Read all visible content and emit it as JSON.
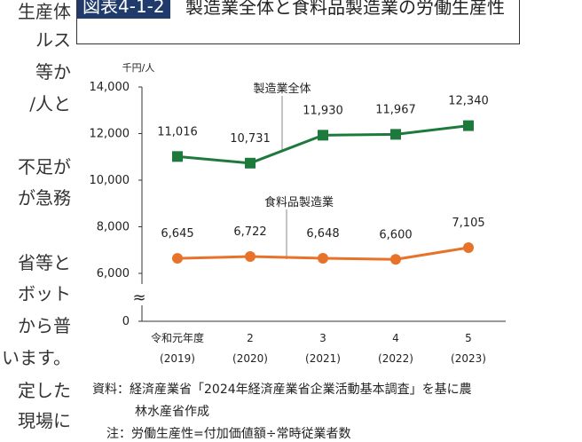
{
  "left_column_text": [
    "生産体",
    "ルス",
    "等か",
    "/人と",
    "不足が",
    "が急務",
    "省等と",
    "ボット",
    "から普",
    "います。",
    "定した",
    "現場に"
  ],
  "figure": {
    "number": "図表4-1-2",
    "title": "製造業全体と食料品製造業の労働生産性"
  },
  "source_note": {
    "line1": "資料：経済産業省「2024年経済産業省企業活動基本調査」を基に農",
    "line2": "林水産省作成",
    "line3": "注：労働生産性=付加価値額÷常時従業者数"
  },
  "chart_data": {
    "type": "line",
    "y_unit": "千円/人",
    "categories": [
      "令和元年度",
      "2",
      "3",
      "4",
      "5"
    ],
    "categories_sub": [
      "(2019)",
      "(2020)",
      "(2021)",
      "(2022)",
      "(2023)"
    ],
    "y_ticks": [
      "14,000",
      "12,000",
      "10,000",
      "8,000",
      "6,000",
      "0"
    ],
    "axis_break_symbol": "≈",
    "ylim": [
      0,
      14000
    ],
    "series": [
      {
        "name": "製造業全体",
        "values": [
          11016,
          10731,
          11930,
          11967,
          12340
        ],
        "labels": [
          "11,016",
          "10,731",
          "11,930",
          "11,967",
          "12,340"
        ],
        "color": "#1e7a3c",
        "marker": "square"
      },
      {
        "name": "食料品製造業",
        "values": [
          6645,
          6722,
          6648,
          6600,
          7105
        ],
        "labels": [
          "6,645",
          "6,722",
          "6,648",
          "6,600",
          "7,105"
        ],
        "color": "#e8722a",
        "marker": "circle"
      }
    ]
  }
}
